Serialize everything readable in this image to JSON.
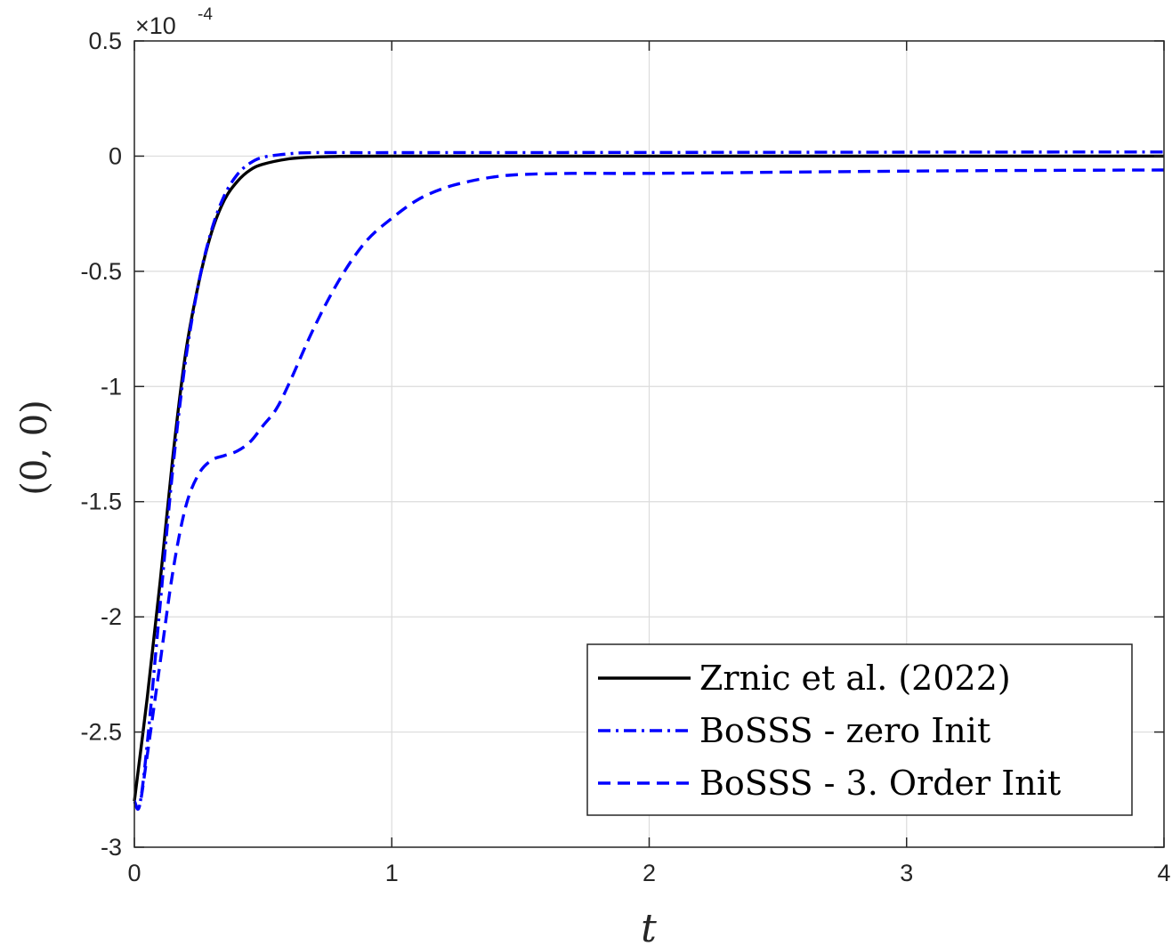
{
  "chart_data": {
    "type": "line",
    "title": "",
    "xlabel": "t",
    "ylabel": "(0, 0)",
    "exponent_base": "×10",
    "exponent_power": "-4",
    "xlim": [
      0,
      4
    ],
    "ylim": [
      -3,
      0.5
    ],
    "x_ticks": [
      0,
      1,
      2,
      3,
      4
    ],
    "x_tick_labels": [
      "0",
      "1",
      "2",
      "3",
      "4"
    ],
    "y_ticks": [
      -3,
      -2.5,
      -2,
      -1.5,
      -1,
      -0.5,
      0,
      0.5
    ],
    "y_tick_labels": [
      "-3",
      "-2.5",
      "-2",
      "-1.5",
      "-1",
      "-0.5",
      "0",
      "0.5"
    ],
    "grid": true,
    "legend_position": "bottom-right",
    "series": [
      {
        "name": "Zrnic et al. (2022)",
        "color": "#000000",
        "style": "solid",
        "x": [
          0,
          0.05,
          0.1,
          0.15,
          0.2,
          0.25,
          0.3,
          0.35,
          0.4,
          0.45,
          0.5,
          0.6,
          0.7,
          0.8,
          1.0,
          1.5,
          2.0,
          3.0,
          4.0
        ],
        "y": [
          -2.8,
          -2.35,
          -1.85,
          -1.3,
          -0.85,
          -0.55,
          -0.33,
          -0.19,
          -0.11,
          -0.06,
          -0.035,
          -0.012,
          -0.004,
          -0.001,
          0,
          0,
          0,
          0,
          0
        ]
      },
      {
        "name": "BoSSS - zero Init",
        "color": "#0000ff",
        "style": "dashdot",
        "x": [
          0,
          0.02,
          0.05,
          0.1,
          0.15,
          0.2,
          0.25,
          0.3,
          0.35,
          0.4,
          0.45,
          0.5,
          0.6,
          0.7,
          1.0,
          2.0,
          3.0,
          4.0
        ],
        "y": [
          -2.8,
          -2.82,
          -2.55,
          -1.95,
          -1.35,
          -0.88,
          -0.55,
          -0.32,
          -0.17,
          -0.08,
          -0.03,
          -0.005,
          0.01,
          0.015,
          0.015,
          0.016,
          0.017,
          0.018
        ]
      },
      {
        "name": "BoSSS - 3. Order Init",
        "color": "#0000ff",
        "style": "dashed",
        "x": [
          0,
          0.02,
          0.05,
          0.1,
          0.15,
          0.2,
          0.25,
          0.3,
          0.35,
          0.4,
          0.45,
          0.5,
          0.55,
          0.6,
          0.7,
          0.8,
          0.9,
          1.0,
          1.1,
          1.2,
          1.3,
          1.4,
          1.5,
          1.7,
          2.0,
          2.5,
          3.0,
          3.5,
          4.0
        ],
        "y": [
          -2.8,
          -2.82,
          -2.6,
          -2.2,
          -1.8,
          -1.52,
          -1.38,
          -1.32,
          -1.3,
          -1.28,
          -1.24,
          -1.17,
          -1.1,
          -0.99,
          -0.74,
          -0.53,
          -0.37,
          -0.27,
          -0.19,
          -0.14,
          -0.11,
          -0.09,
          -0.08,
          -0.075,
          -0.075,
          -0.07,
          -0.065,
          -0.062,
          -0.06
        ]
      }
    ]
  }
}
